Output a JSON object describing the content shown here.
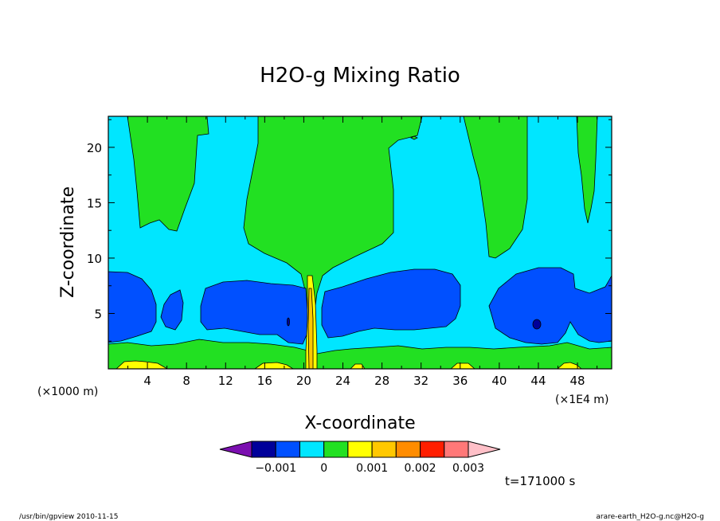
{
  "chart_data": {
    "type": "contour",
    "title": "H2O-g Mixing Ratio",
    "xlabel": "X-coordinate",
    "ylabel": "Z-coordinate",
    "x_unit_left": "(×1000 m)",
    "x_unit_right": "(×1E4 m)",
    "xlim": [
      0,
      51.5
    ],
    "ylim": [
      0,
      22.8
    ],
    "x_ticks": [
      "4",
      "8",
      "12",
      "16",
      "20",
      "24",
      "28",
      "32",
      "36",
      "40",
      "44",
      "48"
    ],
    "y_ticks": [
      "5",
      "10",
      "15",
      "20"
    ],
    "colorbar": {
      "levels": [
        -0.002,
        -0.0015,
        -0.001,
        -0.0005,
        0,
        0.0005,
        0.001,
        0.0015,
        0.002,
        0.0025,
        0.003,
        0.0035
      ],
      "tick_labels": [
        "−0.001",
        "0",
        "0.001",
        "0.002",
        "0.003"
      ],
      "colors": [
        "#7b0fb0",
        "#00009a",
        "#0050ff",
        "#00e6ff",
        "#22e022",
        "#ffff00",
        "#ffc800",
        "#ff8c00",
        "#ff1e00",
        "#ff7878",
        "#ffc0c8"
      ]
    },
    "annotation": "t=171000 s"
  },
  "footer": {
    "left": "/usr/bin/gpview 2010-11-15",
    "right": "arare-earth_H2O-g.nc@H2O-g"
  }
}
